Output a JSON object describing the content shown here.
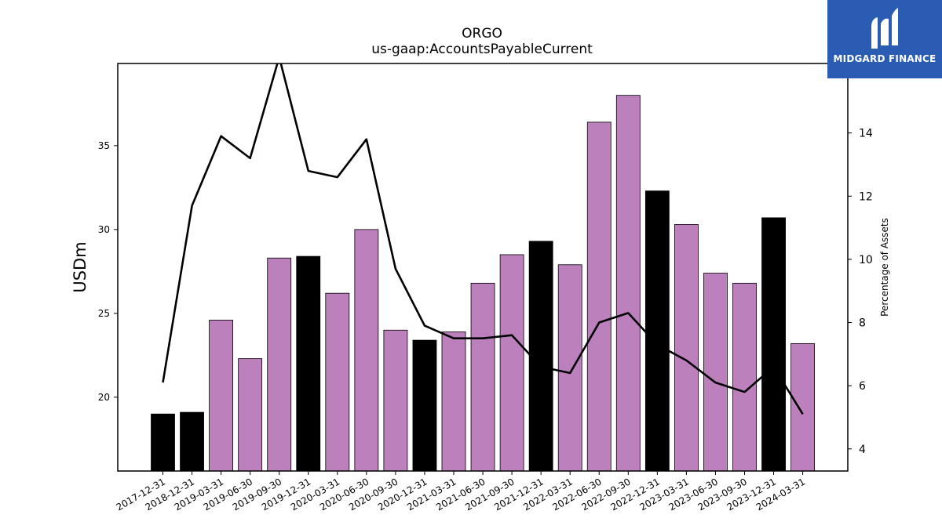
{
  "chart_data": {
    "type": "bar",
    "title": "ORGO",
    "subtitle": "us-gaap:AccountsPayableCurrent",
    "ylabel": "USDm",
    "y2label": "Percentage of Assets",
    "ylim": [
      15.6,
      39.9
    ],
    "y2lim": [
      3.3,
      16.2
    ],
    "yticks": [
      20,
      25,
      30,
      35
    ],
    "y2ticks": [
      4,
      6,
      8,
      10,
      12,
      14
    ],
    "categories": [
      "2017-12-31",
      "2018-12-31",
      "2019-03-31",
      "2019-06-30",
      "2019-09-30",
      "2019-12-31",
      "2020-03-31",
      "2020-06-30",
      "2020-09-30",
      "2020-12-31",
      "2021-03-31",
      "2021-06-30",
      "2021-09-30",
      "2021-12-31",
      "2022-03-31",
      "2022-06-30",
      "2022-09-30",
      "2022-12-31",
      "2023-03-31",
      "2023-06-30",
      "2023-09-30",
      "2023-12-31",
      "2024-03-31"
    ],
    "series": [
      {
        "axis": "left",
        "kind": "bar",
        "values": [
          19.0,
          19.1,
          24.6,
          22.3,
          28.3,
          28.4,
          26.2,
          30.0,
          24.0,
          23.4,
          23.9,
          26.8,
          28.5,
          29.3,
          27.9,
          36.4,
          38.0,
          32.3,
          30.3,
          27.4,
          26.8,
          30.7,
          23.2
        ],
        "highlight": [
          true,
          true,
          false,
          false,
          false,
          true,
          false,
          false,
          false,
          true,
          false,
          false,
          false,
          true,
          false,
          false,
          false,
          true,
          false,
          false,
          false,
          true,
          false
        ]
      },
      {
        "axis": "right",
        "kind": "line",
        "values": [
          6.1,
          11.7,
          13.9,
          13.2,
          16.4,
          12.8,
          12.6,
          13.8,
          9.7,
          7.9,
          7.5,
          7.5,
          7.6,
          6.6,
          6.4,
          8.0,
          8.3,
          7.3,
          6.8,
          6.1,
          5.8,
          6.6,
          5.1
        ]
      }
    ],
    "colors": {
      "bar_default": "#bc80bd",
      "bar_highlight": "#000000",
      "line": "#000000"
    },
    "grid": false,
    "legend": "none"
  },
  "logo": {
    "text": "MIDGARD FINANCE"
  }
}
